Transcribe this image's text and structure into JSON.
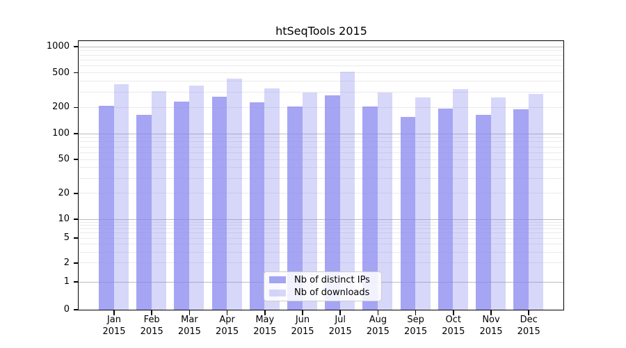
{
  "title": "htSeqTools 2015",
  "colors": {
    "bar_base": "#8787f0",
    "bar_dark_alpha": 0.75,
    "bar_light_alpha": 0.33,
    "grid_major": "#bbbbbb",
    "grid_minor": "#eaeaea",
    "axis_line": "#000000",
    "legend_border": "#cccccc",
    "legend_background": "rgba(255,255,255,0.85)",
    "text": "#000000"
  },
  "legend": {
    "items": [
      {
        "label": "Nb of distinct IPs",
        "swatch": "dark"
      },
      {
        "label": "Nb of downloads",
        "swatch": "light"
      }
    ],
    "position": "lower center inside plot"
  },
  "chart_data": {
    "type": "bar",
    "title": "htSeqTools 2015",
    "categories": [
      "Jan 2015",
      "Feb 2015",
      "Mar 2015",
      "Apr 2015",
      "May 2015",
      "Jun 2015",
      "Jul 2015",
      "Aug 2015",
      "Sep 2015",
      "Oct 2015",
      "Nov 2015",
      "Dec 2015"
    ],
    "month_labels": [
      "Jan",
      "Feb",
      "Mar",
      "Apr",
      "May",
      "Jun",
      "Jul",
      "Aug",
      "Sep",
      "Oct",
      "Nov",
      "Dec"
    ],
    "year_label": "2015",
    "series": [
      {
        "name": "Nb of distinct IPs",
        "values": [
          212,
          166,
          235,
          266,
          230,
          206,
          277,
          206,
          156,
          196,
          167,
          192
        ]
      },
      {
        "name": "Nb of downloads",
        "values": [
          370,
          308,
          360,
          430,
          334,
          298,
          517,
          297,
          261,
          329,
          264,
          290
        ]
      }
    ],
    "yscale": "symlog",
    "y_tick_values": [
      0,
      1,
      2,
      5,
      10,
      20,
      50,
      100,
      200,
      500,
      1000
    ],
    "ylim": [
      0,
      1160
    ],
    "xlabel": "",
    "ylabel": "",
    "grid": "horizontal, major and minor",
    "legend_position": "lower center"
  }
}
